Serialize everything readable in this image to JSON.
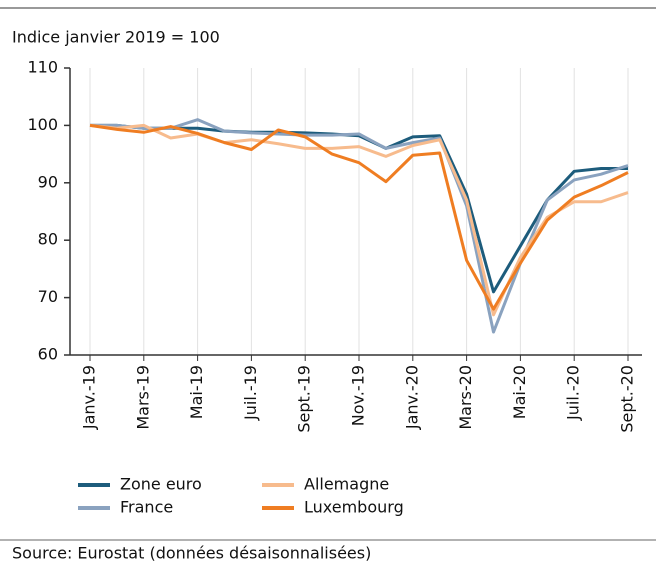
{
  "chart_data": {
    "type": "line",
    "subtitle": "Indice janvier 2019 = 100",
    "source": "Source: Eurostat (données désaisonnalisées)",
    "categories": [
      "Janv.-19",
      null,
      "Mars-19",
      null,
      "Mai-19",
      null,
      "Juil.-19",
      null,
      "Sept.-19",
      null,
      "Nov.-19",
      null,
      "Janv.-20",
      null,
      "Mars-20",
      null,
      "Mai-20",
      null,
      "Juil.-20",
      null,
      "Sept.-20"
    ],
    "series": [
      {
        "name": "Zone euro",
        "color": "#1d5c7c",
        "values": [
          100,
          100,
          99.5,
          99.5,
          99.5,
          99,
          98.8,
          98.8,
          98.7,
          98.5,
          98.2,
          96,
          98,
          98.2,
          88,
          71,
          79,
          87,
          92,
          92.5,
          92.5
        ]
      },
      {
        "name": "France",
        "color": "#8aa2bf",
        "values": [
          100,
          100,
          99.5,
          99.5,
          101,
          99,
          98.7,
          98.5,
          98.3,
          98.3,
          98.5,
          96,
          97,
          97.8,
          86,
          64,
          76,
          87,
          90.5,
          91.5,
          93
        ]
      },
      {
        "name": "Allemagne",
        "color": "#f7bb8d",
        "values": [
          100,
          99.5,
          100,
          97.8,
          98.5,
          97,
          97.5,
          96.8,
          96,
          96,
          96.3,
          94.6,
          96.5,
          97.5,
          87,
          67,
          77,
          84,
          86.7,
          86.7,
          88.3
        ]
      },
      {
        "name": "Luxembourg",
        "color": "#ef7d22",
        "values": [
          100,
          99.3,
          98.8,
          99.8,
          98.6,
          97,
          95.8,
          99.2,
          98,
          95,
          93.5,
          90.2,
          94.8,
          95.2,
          76.5,
          68,
          76,
          83.5,
          87.5,
          89.5,
          91.8
        ]
      }
    ],
    "ylim": [
      60,
      110
    ],
    "yticks": [
      60,
      70,
      80,
      90,
      100,
      110
    ]
  }
}
